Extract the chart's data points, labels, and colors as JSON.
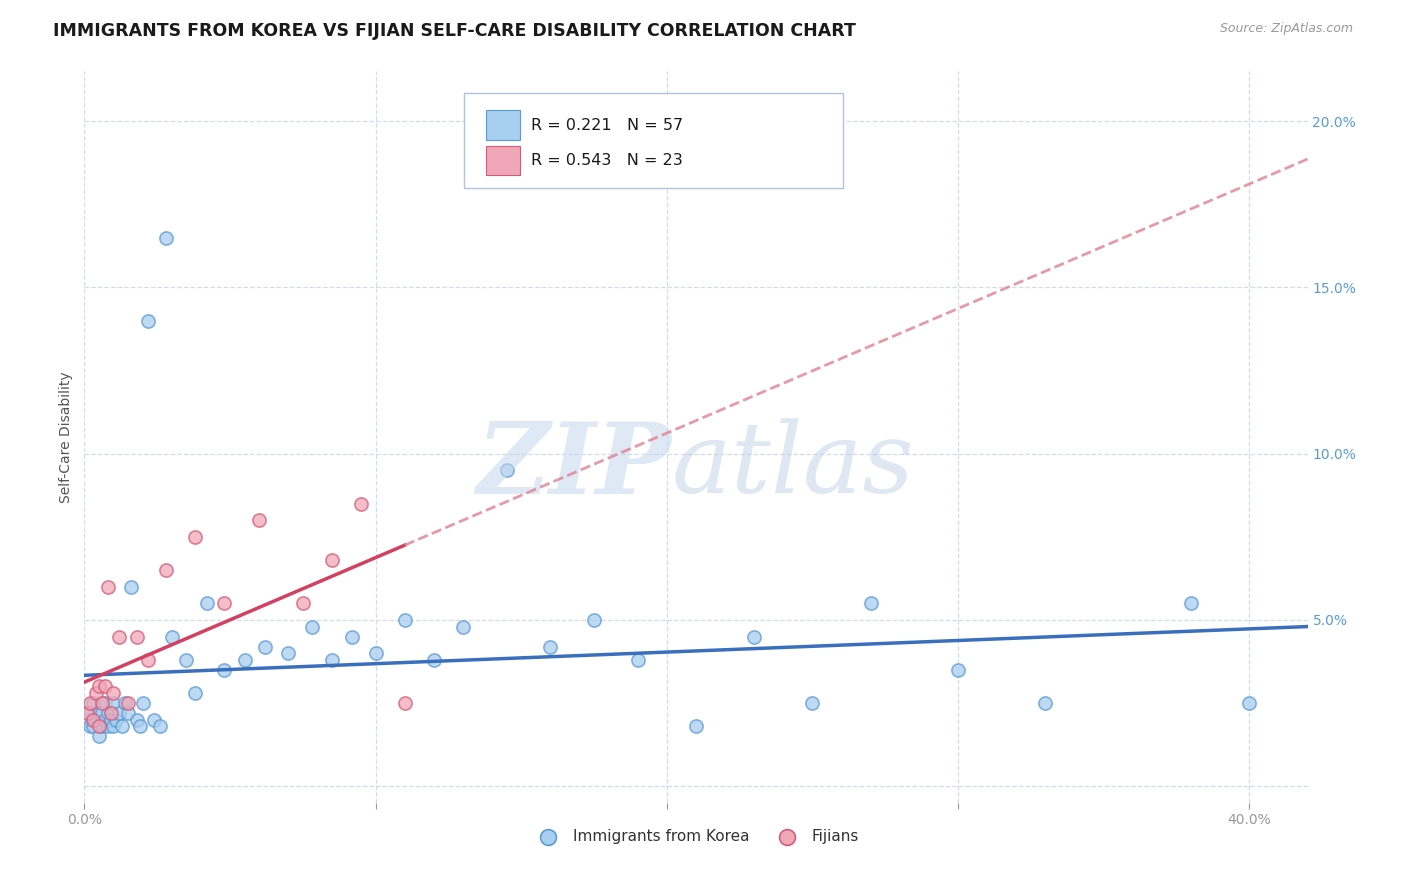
{
  "title": "IMMIGRANTS FROM KOREA VS FIJIAN SELF-CARE DISABILITY CORRELATION CHART",
  "source": "Source: ZipAtlas.com",
  "ylabel": "Self-Care Disability",
  "xlim": [
    0.0,
    0.42
  ],
  "ylim": [
    -0.005,
    0.215
  ],
  "xticks": [
    0.0,
    0.1,
    0.2,
    0.3,
    0.4
  ],
  "xticklabels": [
    "0.0%",
    "",
    "",
    "",
    "40.0%"
  ],
  "yticks_right": [
    0.0,
    0.05,
    0.1,
    0.15,
    0.2
  ],
  "yticklabels_right": [
    "",
    "5.0%",
    "10.0%",
    "15.0%",
    "20.0%"
  ],
  "korea_fill": "#a8cef0",
  "korea_edge": "#5b9bd5",
  "fijian_fill": "#f0a8b8",
  "fijian_edge": "#d45b7a",
  "korea_trend_color": "#3a6fbe",
  "fijian_trend_color": "#d44060",
  "fijian_trend_dash_color": "#e08090",
  "R_korea": 0.221,
  "N_korea": 57,
  "R_fijian": 0.543,
  "N_fijian": 23,
  "background_color": "#ffffff",
  "grid_color": "#c8d4e8",
  "legend_korea_label": "Immigrants from Korea",
  "legend_fijian_label": "Fijians",
  "korea_x": [
    0.001,
    0.002,
    0.002,
    0.003,
    0.003,
    0.004,
    0.005,
    0.005,
    0.006,
    0.006,
    0.007,
    0.007,
    0.008,
    0.008,
    0.009,
    0.01,
    0.01,
    0.011,
    0.012,
    0.013,
    0.014,
    0.015,
    0.016,
    0.018,
    0.019,
    0.02,
    0.022,
    0.024,
    0.026,
    0.028,
    0.03,
    0.035,
    0.038,
    0.042,
    0.048,
    0.055,
    0.062,
    0.07,
    0.078,
    0.085,
    0.092,
    0.1,
    0.11,
    0.12,
    0.13,
    0.145,
    0.16,
    0.175,
    0.19,
    0.21,
    0.23,
    0.25,
    0.27,
    0.3,
    0.33,
    0.38,
    0.4
  ],
  "korea_y": [
    0.02,
    0.018,
    0.022,
    0.025,
    0.018,
    0.02,
    0.022,
    0.015,
    0.018,
    0.022,
    0.02,
    0.025,
    0.018,
    0.022,
    0.02,
    0.018,
    0.025,
    0.02,
    0.022,
    0.018,
    0.025,
    0.022,
    0.06,
    0.02,
    0.018,
    0.025,
    0.14,
    0.02,
    0.018,
    0.165,
    0.045,
    0.038,
    0.028,
    0.055,
    0.035,
    0.038,
    0.042,
    0.04,
    0.048,
    0.038,
    0.045,
    0.04,
    0.05,
    0.038,
    0.048,
    0.095,
    0.042,
    0.05,
    0.038,
    0.018,
    0.045,
    0.025,
    0.055,
    0.035,
    0.025,
    0.055,
    0.025
  ],
  "fijian_x": [
    0.001,
    0.002,
    0.003,
    0.004,
    0.005,
    0.005,
    0.006,
    0.007,
    0.008,
    0.009,
    0.01,
    0.012,
    0.015,
    0.018,
    0.022,
    0.028,
    0.038,
    0.048,
    0.06,
    0.075,
    0.085,
    0.095,
    0.11
  ],
  "fijian_y": [
    0.022,
    0.025,
    0.02,
    0.028,
    0.018,
    0.03,
    0.025,
    0.03,
    0.06,
    0.022,
    0.028,
    0.045,
    0.025,
    0.045,
    0.038,
    0.065,
    0.075,
    0.055,
    0.08,
    0.055,
    0.068,
    0.085,
    0.025
  ]
}
